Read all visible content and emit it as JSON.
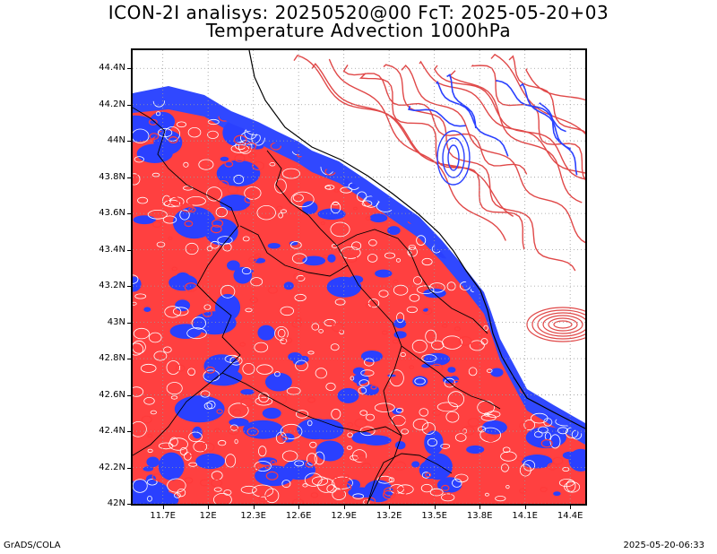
{
  "title": {
    "line1": "ICON-2I analisys: 20250520@00 FcT: 2025-05-20+03",
    "line2": "Temperature Advection 1000hPa"
  },
  "map": {
    "lat_range": [
      42.0,
      44.5
    ],
    "lon_range": [
      11.5,
      14.5
    ],
    "lat_ticks": [
      "44.4N",
      "44.2N",
      "44N",
      "43.8N",
      "43.6N",
      "43.4N",
      "43.2N",
      "43N",
      "42.8N",
      "42.6N",
      "42.4N",
      "42.2N",
      "42N"
    ],
    "lon_ticks": [
      "11.7E",
      "12E",
      "12.3E",
      "12.6E",
      "12.9E",
      "13.2E",
      "13.5E",
      "13.8E",
      "14.1E",
      "14.4E"
    ],
    "colors": {
      "warm_advection": "#ff3a3a",
      "cold_advection": "#2a40ff",
      "sea_contour_warm": "#e04848",
      "grid": "#9a9a9a",
      "border": "#000000"
    }
  },
  "footer": {
    "left": "GrADS/COLA",
    "right": "2025-05-20-06:33"
  }
}
